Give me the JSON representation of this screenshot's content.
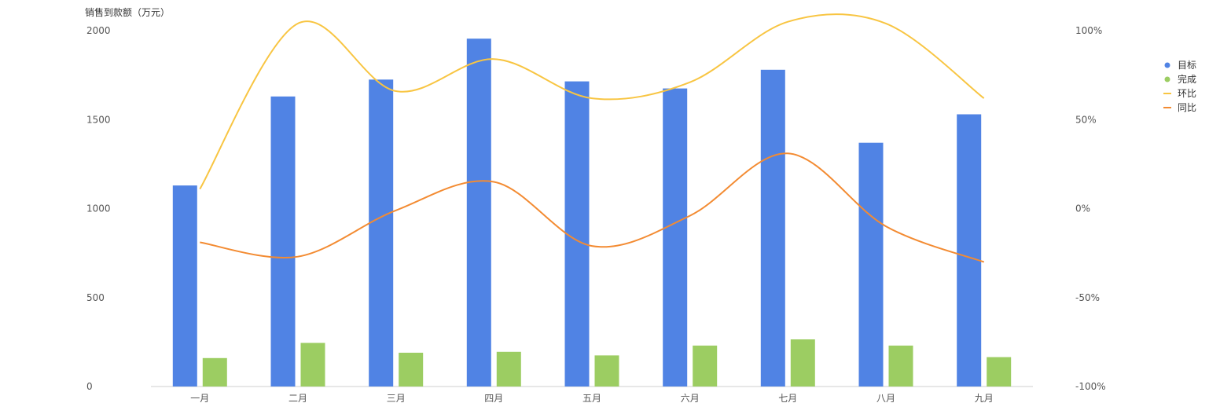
{
  "chart_data": {
    "type": "bar",
    "y_axis_title": "销售到款额（万元）",
    "categories": [
      "一月",
      "二月",
      "三月",
      "四月",
      "五月",
      "六月",
      "七月",
      "八月",
      "九月"
    ],
    "y_left": {
      "ticks": [
        0,
        500,
        1000,
        1500,
        2000
      ],
      "tick_labels": [
        "0",
        "500",
        "1000",
        "1500",
        "2000"
      ],
      "range": [
        0,
        2000
      ]
    },
    "y_right": {
      "ticks": [
        -100,
        -50,
        0,
        50,
        100
      ],
      "tick_labels": [
        "-100%",
        "-50%",
        "0%",
        "50%",
        "100%"
      ],
      "range": [
        -100,
        100
      ]
    },
    "grid": false,
    "legend_position": "right",
    "series": [
      {
        "name": "目标",
        "type": "bar",
        "axis": "left",
        "color": "#5083e4",
        "values": [
          1130,
          1630,
          1725,
          1955,
          1715,
          1675,
          1780,
          1370,
          1530
        ]
      },
      {
        "name": "完成",
        "type": "bar",
        "axis": "left",
        "color": "#9ccd62",
        "values": [
          160,
          245,
          190,
          195,
          175,
          230,
          265,
          230,
          165
        ]
      },
      {
        "name": "环比",
        "type": "line",
        "axis": "right",
        "color": "#f8c542",
        "values": [
          11,
          104,
          66,
          84,
          62,
          71,
          105,
          104,
          62
        ]
      },
      {
        "name": "同比",
        "type": "line",
        "axis": "right",
        "color": "#f38b32",
        "values": [
          -19,
          -27,
          -1,
          15,
          -21,
          -4,
          31,
          -10,
          -30
        ]
      }
    ]
  }
}
